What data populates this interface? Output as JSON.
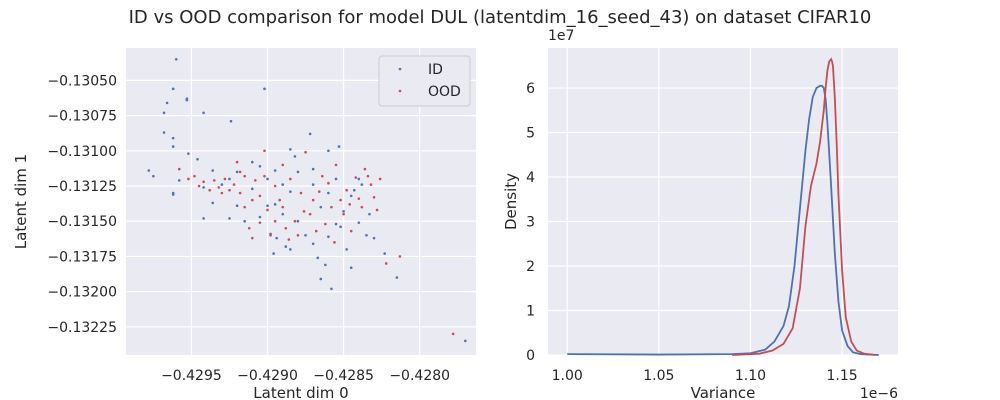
{
  "figure": {
    "suptitle": "ID vs OOD comparison for model DUL (latentdim_16_seed_43) on dataset CIFAR10",
    "colors": {
      "background": "#ffffff",
      "panel": "#EAEAF2",
      "grid": "#ffffff",
      "id_series": "#4C72B0",
      "ood_series": "#C44E52",
      "text": "#262626"
    }
  },
  "chart_data": [
    {
      "type": "scatter",
      "title": "",
      "xlabel": "Latent dim 0",
      "ylabel": "Latent dim 1",
      "xlim": [
        -0.42993,
        -0.42763
      ],
      "ylim": [
        -0.13245,
        -0.13027
      ],
      "xticks": [
        -0.4295,
        -0.429,
        -0.4285,
        -0.428
      ],
      "xtick_labels": [
        "−0.4295",
        "−0.4290",
        "−0.4285",
        "−0.4280"
      ],
      "yticks": [
        -0.1305,
        -0.13075,
        -0.131,
        -0.13125,
        -0.1315,
        -0.13175,
        -0.132,
        -0.13225
      ],
      "ytick_labels": [
        "−0.13050",
        "−0.13075",
        "−0.13100",
        "−0.13125",
        "−0.13150",
        "−0.13175",
        "−0.13200",
        "−0.13225"
      ],
      "legend": {
        "placement": "upper right",
        "entries": [
          "ID",
          "OOD"
        ]
      },
      "grid": true,
      "series": [
        {
          "name": "ID",
          "color": "#4C72B0",
          "points": [
            [
              -0.4296,
              -0.13035
            ],
            [
              -0.42962,
              -0.13056
            ],
            [
              -0.42966,
              -0.13066
            ],
            [
              -0.42968,
              -0.13073
            ],
            [
              -0.42953,
              -0.13063
            ],
            [
              -0.42953,
              -0.13064
            ],
            [
              -0.42942,
              -0.13073
            ],
            [
              -0.42924,
              -0.13079
            ],
            [
              -0.42902,
              -0.13056
            ],
            [
              -0.42978,
              -0.13114
            ],
            [
              -0.42975,
              -0.13118
            ],
            [
              -0.42962,
              -0.13091
            ],
            [
              -0.42962,
              -0.13097
            ],
            [
              -0.42958,
              -0.13121
            ],
            [
              -0.42962,
              -0.1313
            ],
            [
              -0.42962,
              -0.13131
            ],
            [
              -0.42952,
              -0.13102
            ],
            [
              -0.42942,
              -0.13126
            ],
            [
              -0.42942,
              -0.13148
            ],
            [
              -0.42936,
              -0.13114
            ],
            [
              -0.42936,
              -0.13137
            ],
            [
              -0.4293,
              -0.13124
            ],
            [
              -0.42925,
              -0.1312
            ],
            [
              -0.42925,
              -0.13148
            ],
            [
              -0.4292,
              -0.13115
            ],
            [
              -0.4292,
              -0.13139
            ],
            [
              -0.42915,
              -0.1315
            ],
            [
              -0.4291,
              -0.13108
            ],
            [
              -0.4291,
              -0.13127
            ],
            [
              -0.42905,
              -0.13111
            ],
            [
              -0.42905,
              -0.13147
            ],
            [
              -0.429,
              -0.1312
            ],
            [
              -0.429,
              -0.13139
            ],
            [
              -0.42898,
              -0.13159
            ],
            [
              -0.42895,
              -0.13114
            ],
            [
              -0.42895,
              -0.13138
            ],
            [
              -0.4289,
              -0.13124
            ],
            [
              -0.4289,
              -0.13145
            ],
            [
              -0.42888,
              -0.13168
            ],
            [
              -0.42885,
              -0.13099
            ],
            [
              -0.42885,
              -0.13129
            ],
            [
              -0.42885,
              -0.1317
            ],
            [
              -0.4288,
              -0.13115
            ],
            [
              -0.4288,
              -0.1315
            ],
            [
              -0.42875,
              -0.1316
            ],
            [
              -0.42872,
              -0.13088
            ],
            [
              -0.4287,
              -0.13124
            ],
            [
              -0.4287,
              -0.13166
            ],
            [
              -0.42867,
              -0.13176
            ],
            [
              -0.42865,
              -0.1314
            ],
            [
              -0.42865,
              -0.13191
            ],
            [
              -0.42862,
              -0.13181
            ],
            [
              -0.4286,
              -0.131
            ],
            [
              -0.4286,
              -0.1313
            ],
            [
              -0.4286,
              -0.13161
            ],
            [
              -0.42858,
              -0.13198
            ],
            [
              -0.42855,
              -0.1312
            ],
            [
              -0.42855,
              -0.13152
            ],
            [
              -0.42853,
              -0.13097
            ],
            [
              -0.4285,
              -0.13143
            ],
            [
              -0.42848,
              -0.1317
            ],
            [
              -0.42845,
              -0.13132
            ],
            [
              -0.42845,
              -0.13183
            ],
            [
              -0.4284,
              -0.1312
            ],
            [
              -0.4284,
              -0.13151
            ],
            [
              -0.42838,
              -0.13124
            ],
            [
              -0.42835,
              -0.1316
            ],
            [
              -0.42833,
              -0.13145
            ],
            [
              -0.4283,
              -0.13162
            ],
            [
              -0.42823,
              -0.13173
            ],
            [
              -0.42815,
              -0.1319
            ],
            [
              -0.4277,
              -0.13235
            ],
            [
              -0.42968,
              -0.13087
            ],
            [
              -0.42946,
              -0.13106
            ],
            [
              -0.42894,
              -0.13162
            ],
            [
              -0.42882,
              -0.13104
            ],
            [
              -0.4287,
              -0.13113
            ],
            [
              -0.42852,
              -0.13154
            ],
            [
              -0.42843,
              -0.13128
            ],
            [
              -0.42896,
              -0.13173
            ]
          ]
        },
        {
          "name": "OOD",
          "color": "#C44E52",
          "points": [
            [
              -0.42958,
              -0.13113
            ],
            [
              -0.42952,
              -0.1312
            ],
            [
              -0.42948,
              -0.13118
            ],
            [
              -0.42945,
              -0.13125
            ],
            [
              -0.42942,
              -0.13122
            ],
            [
              -0.42938,
              -0.13128
            ],
            [
              -0.42935,
              -0.13121
            ],
            [
              -0.42932,
              -0.13126
            ],
            [
              -0.4293,
              -0.1313
            ],
            [
              -0.42928,
              -0.1312
            ],
            [
              -0.42925,
              -0.13128
            ],
            [
              -0.42922,
              -0.13124
            ],
            [
              -0.4292,
              -0.13108
            ],
            [
              -0.42918,
              -0.13115
            ],
            [
              -0.42918,
              -0.1313
            ],
            [
              -0.42915,
              -0.13118
            ],
            [
              -0.42915,
              -0.1314
            ],
            [
              -0.42912,
              -0.13155
            ],
            [
              -0.4291,
              -0.13135
            ],
            [
              -0.4291,
              -0.13162
            ],
            [
              -0.42908,
              -0.13121
            ],
            [
              -0.42905,
              -0.13132
            ],
            [
              -0.42905,
              -0.13151
            ],
            [
              -0.42902,
              -0.131
            ],
            [
              -0.42902,
              -0.13118
            ],
            [
              -0.429,
              -0.13142
            ],
            [
              -0.42898,
              -0.1316
            ],
            [
              -0.42895,
              -0.13125
            ],
            [
              -0.42895,
              -0.1315
            ],
            [
              -0.42892,
              -0.13135
            ],
            [
              -0.4289,
              -0.1311
            ],
            [
              -0.4289,
              -0.1314
            ],
            [
              -0.42888,
              -0.13155
            ],
            [
              -0.42886,
              -0.13163
            ],
            [
              -0.42885,
              -0.1312
            ],
            [
              -0.42882,
              -0.1315
            ],
            [
              -0.4288,
              -0.1316
            ],
            [
              -0.42878,
              -0.1313
            ],
            [
              -0.42876,
              -0.13143
            ],
            [
              -0.42875,
              -0.13101
            ],
            [
              -0.42872,
              -0.13145
            ],
            [
              -0.4287,
              -0.13135
            ],
            [
              -0.42868,
              -0.13157
            ],
            [
              -0.42866,
              -0.13129
            ],
            [
              -0.42864,
              -0.13118
            ],
            [
              -0.42862,
              -0.13152
            ],
            [
              -0.4286,
              -0.13123
            ],
            [
              -0.42858,
              -0.1314
            ],
            [
              -0.42856,
              -0.13165
            ],
            [
              -0.42855,
              -0.1311
            ],
            [
              -0.42852,
              -0.13135
            ],
            [
              -0.4285,
              -0.13145
            ],
            [
              -0.42848,
              -0.13128
            ],
            [
              -0.42846,
              -0.13138
            ],
            [
              -0.42845,
              -0.13157
            ],
            [
              -0.42842,
              -0.13119
            ],
            [
              -0.4284,
              -0.13134
            ],
            [
              -0.42838,
              -0.1314
            ],
            [
              -0.42836,
              -0.13113
            ],
            [
              -0.42834,
              -0.13118
            ],
            [
              -0.42832,
              -0.13124
            ],
            [
              -0.4283,
              -0.13133
            ],
            [
              -0.42828,
              -0.13142
            ],
            [
              -0.42826,
              -0.1312
            ],
            [
              -0.42822,
              -0.1318
            ],
            [
              -0.42813,
              -0.13175
            ],
            [
              -0.42778,
              -0.1323
            ]
          ]
        }
      ]
    },
    {
      "type": "line",
      "title": "",
      "xlabel": "Variance",
      "ylabel": "Density",
      "x_scale_label": "1e−6",
      "y_scale_label": "1e7",
      "xlim": [
        0.9895,
        1.1805
      ],
      "ylim": [
        0,
        6.9
      ],
      "xticks": [
        1.0,
        1.05,
        1.1,
        1.15
      ],
      "xtick_labels": [
        "1.00",
        "1.05",
        "1.10",
        "1.15"
      ],
      "yticks": [
        0,
        1,
        2,
        3,
        4,
        5,
        6
      ],
      "ytick_labels": [
        "0",
        "1",
        "2",
        "3",
        "4",
        "5",
        "6"
      ],
      "grid": true,
      "series": [
        {
          "name": "ID",
          "color": "#4C72B0",
          "x": [
            1.0,
            1.05,
            1.09,
            1.1,
            1.108,
            1.113,
            1.118,
            1.121,
            1.124,
            1.127,
            1.13,
            1.132,
            1.134,
            1.136,
            1.138,
            1.139,
            1.14,
            1.141,
            1.142,
            1.144,
            1.146,
            1.148,
            1.15,
            1.153,
            1.156,
            1.16,
            1.165,
            1.17
          ],
          "y": [
            0.02,
            0.01,
            0.02,
            0.04,
            0.12,
            0.3,
            0.65,
            1.1,
            2.0,
            3.3,
            4.6,
            5.3,
            5.8,
            6.0,
            6.05,
            6.05,
            6.0,
            5.75,
            5.2,
            3.8,
            2.3,
            1.2,
            0.55,
            0.2,
            0.06,
            0.02,
            0.01,
            0.0
          ]
        },
        {
          "name": "OOD",
          "color": "#C44E52",
          "x": [
            1.09,
            1.105,
            1.112,
            1.118,
            1.123,
            1.127,
            1.13,
            1.133,
            1.136,
            1.138,
            1.14,
            1.141,
            1.142,
            1.143,
            1.144,
            1.1445,
            1.145,
            1.146,
            1.147,
            1.148,
            1.15,
            1.152,
            1.155,
            1.158,
            1.162,
            1.168
          ],
          "y": [
            0.0,
            0.03,
            0.1,
            0.25,
            0.6,
            1.5,
            2.9,
            3.8,
            4.3,
            4.8,
            5.5,
            6.0,
            6.4,
            6.6,
            6.65,
            6.6,
            6.5,
            5.8,
            4.8,
            3.6,
            1.9,
            0.85,
            0.3,
            0.1,
            0.03,
            0.0
          ]
        }
      ]
    }
  ]
}
